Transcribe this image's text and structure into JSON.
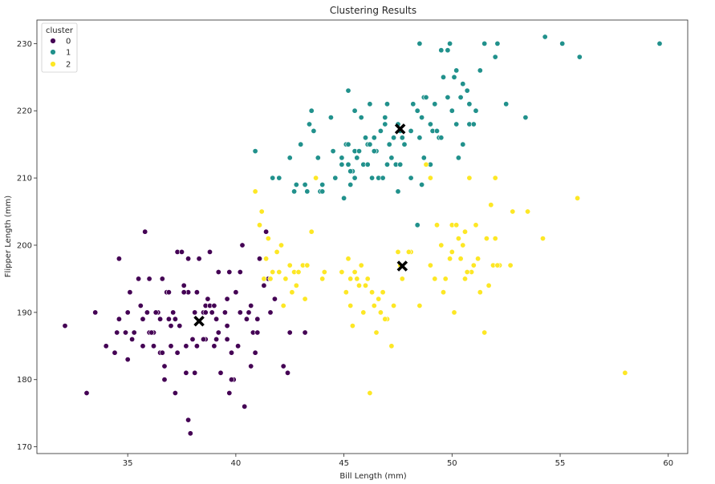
{
  "chart_data": {
    "type": "scatter",
    "title": "Clustering Results",
    "xlabel": "Bill Length (mm)",
    "ylabel": "Flipper Length (mm)",
    "xlim": [
      30.8,
      60.9
    ],
    "ylim": [
      169,
      233.5
    ],
    "xticks": [
      35,
      40,
      45,
      50,
      55,
      60
    ],
    "yticks": [
      170,
      180,
      190,
      200,
      210,
      220,
      230
    ],
    "legend_title": "cluster",
    "legend_location": "top-left",
    "series": [
      {
        "name": "0",
        "color": "#440154",
        "points": [
          [
            32.1,
            188
          ],
          [
            33.1,
            178
          ],
          [
            33.5,
            190
          ],
          [
            34.0,
            185
          ],
          [
            34.4,
            184
          ],
          [
            34.5,
            187
          ],
          [
            34.6,
            189
          ],
          [
            34.6,
            198
          ],
          [
            35.0,
            190
          ],
          [
            35.1,
            193
          ],
          [
            35.2,
            186
          ],
          [
            35.3,
            187
          ],
          [
            35.5,
            195
          ],
          [
            35.6,
            191
          ],
          [
            35.7,
            185
          ],
          [
            35.7,
            189
          ],
          [
            35.8,
            202
          ],
          [
            35.9,
            190
          ],
          [
            36.0,
            195
          ],
          [
            36.0,
            187
          ],
          [
            36.2,
            187
          ],
          [
            36.2,
            185
          ],
          [
            36.4,
            190
          ],
          [
            36.5,
            184
          ],
          [
            36.6,
            195
          ],
          [
            36.6,
            184
          ],
          [
            36.7,
            182
          ],
          [
            36.7,
            180
          ],
          [
            36.8,
            193
          ],
          [
            36.9,
            193
          ],
          [
            37.0,
            185
          ],
          [
            37.0,
            188
          ],
          [
            37.2,
            189
          ],
          [
            37.2,
            178
          ],
          [
            37.3,
            199
          ],
          [
            37.3,
            184
          ],
          [
            37.5,
            199
          ],
          [
            37.6,
            194
          ],
          [
            37.7,
            185
          ],
          [
            37.7,
            181
          ],
          [
            37.8,
            198
          ],
          [
            37.8,
            193
          ],
          [
            37.8,
            174
          ],
          [
            37.9,
            172
          ],
          [
            38.1,
            181
          ],
          [
            38.1,
            190
          ],
          [
            38.2,
            185
          ],
          [
            38.3,
            198
          ],
          [
            38.5,
            190
          ],
          [
            38.6,
            191
          ],
          [
            38.6,
            190
          ],
          [
            38.7,
            192
          ],
          [
            38.8,
            191
          ],
          [
            38.8,
            199
          ],
          [
            38.9,
            190
          ],
          [
            39.0,
            191
          ],
          [
            39.0,
            185
          ],
          [
            39.1,
            186
          ],
          [
            39.2,
            196
          ],
          [
            39.3,
            181
          ],
          [
            39.5,
            190
          ],
          [
            39.6,
            188
          ],
          [
            39.6,
            192
          ],
          [
            39.7,
            196
          ],
          [
            39.8,
            184
          ],
          [
            39.9,
            180
          ],
          [
            40.0,
            193
          ],
          [
            40.2,
            196
          ],
          [
            40.3,
            200
          ],
          [
            40.4,
            176
          ],
          [
            40.6,
            190
          ],
          [
            40.8,
            187
          ],
          [
            40.9,
            184
          ],
          [
            41.1,
            198
          ],
          [
            41.3,
            194
          ],
          [
            41.4,
            202
          ],
          [
            41.5,
            195
          ],
          [
            41.6,
            190
          ],
          [
            42.2,
            182
          ],
          [
            42.5,
            187
          ],
          [
            43.2,
            187
          ],
          [
            39.7,
            178
          ],
          [
            40.2,
            190
          ],
          [
            38.0,
            186
          ],
          [
            36.3,
            190
          ],
          [
            35.0,
            183
          ],
          [
            37.4,
            188
          ],
          [
            39.1,
            189
          ],
          [
            40.5,
            189
          ],
          [
            41.0,
            189
          ],
          [
            38.6,
            186
          ],
          [
            37.1,
            190
          ],
          [
            36.9,
            189
          ],
          [
            34.9,
            187
          ],
          [
            40.7,
            182
          ],
          [
            38.2,
            193
          ],
          [
            37.4,
            188
          ],
          [
            39.2,
            187
          ],
          [
            36.1,
            187
          ],
          [
            41.8,
            192
          ],
          [
            39.6,
            186
          ],
          [
            42.4,
            181
          ],
          [
            38.5,
            186
          ],
          [
            40.1,
            185
          ],
          [
            36.5,
            189
          ],
          [
            35.7,
            189
          ],
          [
            37.6,
            193
          ],
          [
            39.8,
            180
          ],
          [
            40.7,
            191
          ],
          [
            41.0,
            187
          ]
        ]
      },
      {
        "name": "1",
        "color": "#21918c",
        "points": [
          [
            40.9,
            214
          ],
          [
            41.7,
            210
          ],
          [
            42.0,
            210
          ],
          [
            42.5,
            213
          ],
          [
            42.7,
            208
          ],
          [
            42.8,
            209
          ],
          [
            43.0,
            215
          ],
          [
            43.2,
            209
          ],
          [
            43.3,
            208
          ],
          [
            43.4,
            218
          ],
          [
            43.5,
            220
          ],
          [
            43.6,
            217
          ],
          [
            43.9,
            208
          ],
          [
            44.0,
            208
          ],
          [
            44.4,
            219
          ],
          [
            44.5,
            214
          ],
          [
            44.9,
            212
          ],
          [
            44.9,
            213
          ],
          [
            45.1,
            215
          ],
          [
            45.2,
            215
          ],
          [
            45.2,
            212
          ],
          [
            45.3,
            209
          ],
          [
            45.4,
            211
          ],
          [
            45.5,
            220
          ],
          [
            45.5,
            214
          ],
          [
            45.5,
            210
          ],
          [
            45.7,
            214
          ],
          [
            45.8,
            219
          ],
          [
            45.9,
            212
          ],
          [
            46.0,
            216
          ],
          [
            46.1,
            212
          ],
          [
            46.2,
            221
          ],
          [
            46.3,
            210
          ],
          [
            46.4,
            216
          ],
          [
            46.5,
            214
          ],
          [
            46.6,
            210
          ],
          [
            46.8,
            210
          ],
          [
            46.9,
            218
          ],
          [
            47.0,
            221
          ],
          [
            47.1,
            215
          ],
          [
            47.3,
            216
          ],
          [
            47.4,
            212
          ],
          [
            47.5,
            208
          ],
          [
            47.6,
            217
          ],
          [
            47.7,
            216
          ],
          [
            47.8,
            215
          ],
          [
            48.1,
            210
          ],
          [
            48.2,
            221
          ],
          [
            48.4,
            220
          ],
          [
            48.5,
            230
          ],
          [
            48.6,
            219
          ],
          [
            48.7,
            222
          ],
          [
            48.8,
            222
          ],
          [
            49.0,
            212
          ],
          [
            49.1,
            217
          ],
          [
            49.2,
            221
          ],
          [
            49.4,
            216
          ],
          [
            49.5,
            229
          ],
          [
            49.6,
            225
          ],
          [
            49.8,
            229
          ],
          [
            49.9,
            230
          ],
          [
            50.0,
            220
          ],
          [
            50.1,
            225
          ],
          [
            50.2,
            218
          ],
          [
            50.4,
            222
          ],
          [
            50.5,
            224
          ],
          [
            50.7,
            223
          ],
          [
            50.8,
            218
          ],
          [
            51.1,
            220
          ],
          [
            51.3,
            226
          ],
          [
            51.5,
            230
          ],
          [
            52.0,
            228
          ],
          [
            52.1,
            230
          ],
          [
            52.5,
            221
          ],
          [
            53.4,
            219
          ],
          [
            54.3,
            231
          ],
          [
            55.1,
            230
          ],
          [
            55.9,
            228
          ],
          [
            59.6,
            230
          ],
          [
            45.2,
            223
          ],
          [
            46.7,
            217
          ],
          [
            48.4,
            203
          ],
          [
            44.9,
            213
          ],
          [
            45.6,
            213
          ],
          [
            46.4,
            214
          ],
          [
            47.5,
            218
          ],
          [
            48.5,
            216
          ],
          [
            49.3,
            217
          ],
          [
            50.5,
            215
          ],
          [
            47.2,
            213
          ],
          [
            46.1,
            215
          ],
          [
            43.8,
            213
          ],
          [
            45.0,
            207
          ],
          [
            44.6,
            210
          ],
          [
            46.9,
            219
          ],
          [
            48.1,
            217
          ],
          [
            49.8,
            222
          ],
          [
            50.3,
            213
          ],
          [
            47.6,
            212
          ],
          [
            45.3,
            211
          ],
          [
            44.0,
            209
          ],
          [
            48.6,
            209
          ],
          [
            46.2,
            215
          ],
          [
            47.0,
            212
          ],
          [
            49.5,
            216
          ],
          [
            50.8,
            221
          ],
          [
            51.0,
            218
          ],
          [
            49.0,
            218
          ],
          [
            50.2,
            226
          ],
          [
            48.7,
            213
          ]
        ]
      },
      {
        "name": "2",
        "color": "#fde725",
        "points": [
          [
            40.9,
            208
          ],
          [
            41.1,
            203
          ],
          [
            41.2,
            205
          ],
          [
            41.4,
            198
          ],
          [
            41.5,
            201
          ],
          [
            41.7,
            196
          ],
          [
            41.9,
            199
          ],
          [
            42.1,
            200
          ],
          [
            42.3,
            195
          ],
          [
            42.5,
            197
          ],
          [
            42.6,
            193
          ],
          [
            42.7,
            196
          ],
          [
            42.9,
            196
          ],
          [
            43.1,
            197
          ],
          [
            43.2,
            192
          ],
          [
            43.3,
            197
          ],
          [
            43.5,
            202
          ],
          [
            43.7,
            210
          ],
          [
            44.1,
            196
          ],
          [
            45.2,
            198
          ],
          [
            45.3,
            191
          ],
          [
            45.4,
            188
          ],
          [
            45.6,
            195
          ],
          [
            45.7,
            194
          ],
          [
            45.8,
            197
          ],
          [
            45.9,
            190
          ],
          [
            46.1,
            195
          ],
          [
            46.2,
            178
          ],
          [
            46.4,
            191
          ],
          [
            46.5,
            187
          ],
          [
            46.6,
            192
          ],
          [
            46.8,
            193
          ],
          [
            47.0,
            189
          ],
          [
            47.2,
            185
          ],
          [
            47.5,
            199
          ],
          [
            47.7,
            195
          ],
          [
            48.1,
            199
          ],
          [
            48.5,
            191
          ],
          [
            48.8,
            212
          ],
          [
            49.0,
            210
          ],
          [
            49.3,
            203
          ],
          [
            49.6,
            193
          ],
          [
            49.7,
            195
          ],
          [
            49.9,
            198
          ],
          [
            50.1,
            190
          ],
          [
            50.3,
            201
          ],
          [
            50.5,
            200
          ],
          [
            50.6,
            195
          ],
          [
            50.8,
            210
          ],
          [
            50.9,
            196
          ],
          [
            51.1,
            203
          ],
          [
            51.3,
            193
          ],
          [
            51.5,
            187
          ],
          [
            51.7,
            194
          ],
          [
            51.9,
            197
          ],
          [
            52.0,
            210
          ],
          [
            52.2,
            197
          ],
          [
            52.7,
            197
          ],
          [
            52.8,
            205
          ],
          [
            53.5,
            205
          ],
          [
            54.2,
            201
          ],
          [
            55.8,
            207
          ],
          [
            58.0,
            181
          ],
          [
            42.2,
            191
          ],
          [
            44.9,
            196
          ],
          [
            46.0,
            194
          ],
          [
            47.6,
            197
          ],
          [
            49.2,
            195
          ],
          [
            50.4,
            198
          ],
          [
            51.2,
            198
          ],
          [
            52.0,
            201
          ],
          [
            50.0,
            203
          ],
          [
            41.3,
            195
          ],
          [
            42.0,
            196
          ],
          [
            45.5,
            196
          ],
          [
            46.9,
            189
          ],
          [
            48.0,
            199
          ],
          [
            49.5,
            200
          ],
          [
            50.7,
            196
          ],
          [
            51.6,
            201
          ],
          [
            45.3,
            195
          ],
          [
            46.3,
            193
          ],
          [
            47.3,
            191
          ],
          [
            50.0,
            199
          ],
          [
            51.8,
            206
          ],
          [
            41.6,
            195
          ],
          [
            42.8,
            194
          ],
          [
            44.0,
            195
          ],
          [
            49.0,
            197
          ],
          [
            50.6,
            202
          ],
          [
            51.0,
            197
          ],
          [
            45.1,
            193
          ],
          [
            46.7,
            190
          ],
          [
            52.1,
            197
          ],
          [
            50.2,
            203
          ],
          [
            46.6,
            192
          ]
        ]
      }
    ],
    "centroids": [
      {
        "cluster": "0",
        "x": 38.3,
        "y": 188.7
      },
      {
        "cluster": "1",
        "x": 47.6,
        "y": 217.3
      },
      {
        "cluster": "2",
        "x": 47.7,
        "y": 196.9
      }
    ]
  }
}
